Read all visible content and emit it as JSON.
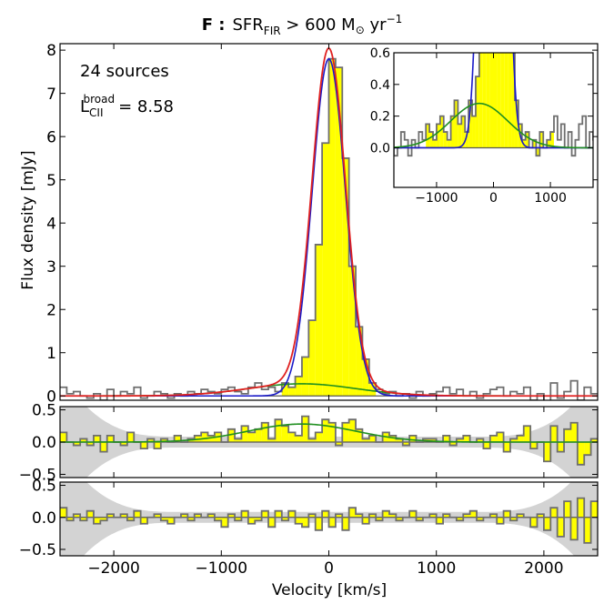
{
  "title": {
    "prefix": "F :",
    "main": "SFR",
    "sub": "FIR",
    "rest": " > 600 M",
    "sun": "⊙",
    "unit": " yr",
    "exp": "−1"
  },
  "annotations": {
    "sources": "24 sources",
    "lum_base": "L",
    "lum_sub": "CII",
    "lum_sup": "broad",
    "lum_value": "=  8.58"
  },
  "chart_data": [
    {
      "id": "main",
      "type": "step+line",
      "title": "F: SFR_FIR > 600 M_sun yr^-1",
      "xlabel": "Velocity [km/s]",
      "ylabel": "Flux density [mJy]",
      "xlim": [
        -2500,
        2500
      ],
      "ylim": [
        -0.1,
        8.15
      ],
      "yticks": [
        0,
        1,
        2,
        3,
        4,
        5,
        6,
        7,
        8
      ],
      "xticks": [
        -2000,
        -1000,
        0,
        1000,
        2000
      ],
      "channel_width": 62.5,
      "spectrum": {
        "x": [
          -2500,
          -2437.5,
          -2375,
          -2312.5,
          -2250,
          -2187.5,
          -2125,
          -2062.5,
          -2000,
          -1937.5,
          -1875,
          -1812.5,
          -1750,
          -1687.5,
          -1625,
          -1562.5,
          -1500,
          -1437.5,
          -1375,
          -1312.5,
          -1250,
          -1187.5,
          -1125,
          -1062.5,
          -1000,
          -937.5,
          -875,
          -812.5,
          -750,
          -687.5,
          -625,
          -562.5,
          -500,
          -437.5,
          -375,
          -312.5,
          -250,
          -187.5,
          -125,
          -62.5,
          0,
          62.5,
          125,
          187.5,
          250,
          312.5,
          375,
          437.5,
          500,
          562.5,
          625,
          687.5,
          750,
          812.5,
          875,
          937.5,
          1000,
          1062.5,
          1125,
          1187.5,
          1250,
          1312.5,
          1375,
          1437.5,
          1500,
          1562.5,
          1625,
          1687.5,
          1750,
          1812.5,
          1875,
          1937.5,
          2000,
          2062.5,
          2125,
          2187.5,
          2250,
          2312.5,
          2375,
          2437.5
        ],
        "flux": [
          0.2,
          0.05,
          0.1,
          0.0,
          -0.05,
          0.05,
          -0.1,
          0.15,
          0.0,
          0.1,
          0.05,
          0.2,
          -0.05,
          0.0,
          0.1,
          0.05,
          -0.05,
          0.05,
          0.0,
          0.1,
          0.05,
          0.15,
          0.1,
          0.05,
          0.15,
          0.2,
          0.1,
          0.05,
          0.2,
          0.3,
          0.15,
          0.2,
          0.1,
          0.3,
          0.2,
          0.45,
          0.9,
          1.75,
          3.5,
          5.85,
          7.8,
          7.6,
          5.5,
          3.0,
          1.6,
          0.85,
          0.3,
          0.15,
          0.05,
          0.1,
          0.0,
          0.05,
          -0.05,
          0.1,
          0.0,
          0.05,
          0.1,
          0.2,
          0.05,
          0.15,
          0.0,
          0.1,
          -0.05,
          0.05,
          0.15,
          0.2,
          0.0,
          0.1,
          0.05,
          0.2,
          -0.1,
          0.05,
          -0.15,
          0.3,
          -0.05,
          0.1,
          0.35,
          -0.1,
          0.2,
          0.05
        ]
      },
      "narrow_gaussian": {
        "color": "#1a1ac8",
        "amplitude": 7.8,
        "center": 0,
        "sigma": 155
      },
      "broad_gaussian": {
        "color": "#1f8f1f",
        "amplitude": 0.28,
        "center": -250,
        "sigma": 500
      },
      "total_fit": {
        "color": "#e02020"
      },
      "fill_color": "#ffff00"
    },
    {
      "id": "inset",
      "type": "step+line",
      "xlim": [
        -1750,
        1750
      ],
      "ylim": [
        -0.25,
        0.6
      ],
      "xticks": [
        -1000,
        0,
        1000
      ],
      "yticks": [
        0.0,
        0.2,
        0.4,
        0.6
      ],
      "yticklabels": [
        "0.0",
        "0.2",
        "0.4",
        "0.6"
      ]
    },
    {
      "id": "residual_narrow",
      "type": "step+line",
      "ylim": [
        -0.55,
        0.55
      ],
      "yticks": [
        -0.5,
        0.0,
        0.5
      ],
      "yticklabels": [
        "−0.5",
        "0.0",
        "0.5"
      ],
      "residual": [
        0.15,
        0.0,
        -0.05,
        0.05,
        -0.05,
        0.1,
        -0.15,
        0.1,
        0.0,
        -0.05,
        0.15,
        0.0,
        -0.1,
        0.05,
        -0.1,
        0.05,
        0.0,
        0.1,
        0.0,
        0.05,
        0.1,
        0.15,
        0.1,
        0.15,
        0.0,
        0.2,
        0.05,
        0.25,
        0.15,
        0.2,
        0.3,
        0.05,
        0.35,
        0.25,
        0.15,
        0.1,
        0.4,
        0.05,
        0.15,
        0.35,
        0.3,
        -0.05,
        0.3,
        0.35,
        0.2,
        0.05,
        0.1,
        0.0,
        0.15,
        0.1,
        0.05,
        -0.05,
        0.1,
        0.0,
        0.05,
        0.05,
        0.0,
        0.1,
        -0.05,
        0.05,
        0.1,
        0.0,
        0.05,
        -0.1,
        0.1,
        0.15,
        -0.15,
        0.05,
        0.1,
        0.25,
        -0.1,
        0.0,
        -0.3,
        0.25,
        -0.15,
        0.2,
        0.3,
        -0.35,
        -0.2,
        0.05
      ]
    },
    {
      "id": "residual_total",
      "type": "step+line",
      "xlabel": "Velocity [km/s]",
      "xticks": [
        -2000,
        -1000,
        0,
        1000,
        2000
      ],
      "xticklabels": [
        "−2000",
        "−1000",
        "0",
        "1000",
        "2000"
      ],
      "ylim": [
        -0.6,
        0.55
      ],
      "yticks": [
        -0.5,
        0.0,
        0.5
      ],
      "yticklabels": [
        "−0.5",
        "0.0",
        "0.5"
      ],
      "residual": [
        0.15,
        -0.05,
        0.05,
        -0.05,
        0.1,
        -0.1,
        -0.05,
        0.05,
        0.0,
        0.05,
        -0.05,
        0.1,
        -0.1,
        0.0,
        0.05,
        -0.05,
        -0.1,
        0.0,
        0.05,
        -0.05,
        0.05,
        0.0,
        0.05,
        -0.05,
        -0.15,
        0.05,
        -0.05,
        0.1,
        -0.1,
        -0.05,
        0.1,
        -0.15,
        0.1,
        -0.05,
        0.1,
        -0.1,
        -0.15,
        0.05,
        -0.2,
        0.1,
        -0.15,
        0.05,
        -0.2,
        0.15,
        0.05,
        -0.1,
        0.05,
        -0.05,
        0.1,
        0.05,
        -0.05,
        0.0,
        0.1,
        -0.05,
        0.0,
        0.05,
        -0.1,
        0.05,
        0.0,
        -0.05,
        0.05,
        0.1,
        -0.05,
        0.0,
        0.05,
        -0.1,
        0.1,
        -0.05,
        0.05,
        0.0,
        -0.15,
        0.05,
        -0.2,
        0.15,
        -0.3,
        0.25,
        -0.35,
        0.3,
        -0.4,
        0.25
      ]
    }
  ]
}
